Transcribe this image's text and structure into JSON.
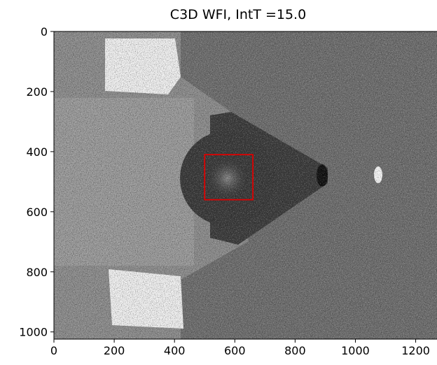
{
  "chart_data": {
    "type": "image",
    "title": "C3D WFI, IntT =15.0",
    "xlim": [
      0,
      1280
    ],
    "ylim": [
      1024,
      0
    ],
    "xticks": [
      0,
      200,
      400,
      600,
      800,
      1000,
      1200
    ],
    "yticks": [
      0,
      200,
      400,
      600,
      800,
      1000
    ],
    "colormap": "gray",
    "roi": {
      "x": [
        500,
        660
      ],
      "y": [
        410,
        560
      ],
      "color": "#e00000"
    }
  }
}
